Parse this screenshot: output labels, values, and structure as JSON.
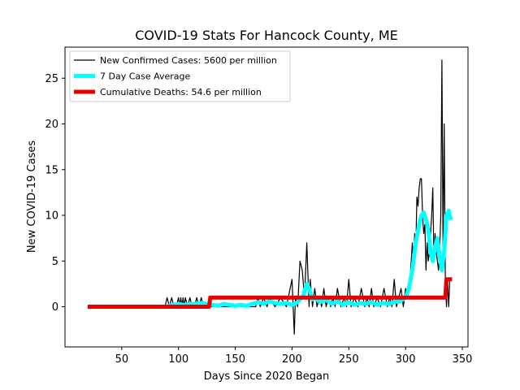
{
  "chart_data": {
    "type": "line",
    "title": "COVID-19 Stats For Hancock County, ME",
    "xlabel": "Days Since 2020 Began",
    "ylabel": "New COVID-19 Cases",
    "xlim": [
      0,
      355
    ],
    "ylim": [
      -4.4,
      28.4
    ],
    "xticks": [
      50,
      100,
      150,
      200,
      250,
      300,
      350
    ],
    "yticks": [
      0,
      5,
      10,
      15,
      20,
      25
    ],
    "grid": false,
    "legend_position": "top-left",
    "series": [
      {
        "name": "New Confirmed Cases: 5600 per million",
        "color": "#000000",
        "x": [
          20,
          88,
          90,
          92,
          94,
          96,
          98,
          100,
          101,
          102,
          103,
          104,
          105,
          106,
          108,
          110,
          112,
          114,
          116,
          118,
          120,
          122,
          130,
          150,
          168,
          170,
          172,
          175,
          178,
          180,
          185,
          190,
          195,
          200,
          202,
          203,
          205,
          207,
          209,
          211,
          213,
          215,
          216,
          218,
          220,
          222,
          224,
          226,
          228,
          230,
          232,
          234,
          236,
          238,
          240,
          243,
          246,
          248,
          250,
          252,
          255,
          258,
          261,
          264,
          266,
          268,
          270,
          272,
          275,
          278,
          281,
          284,
          286,
          288,
          290,
          292,
          294,
          296,
          298,
          300,
          302,
          304,
          306,
          307,
          308,
          309,
          310,
          311,
          312,
          313,
          314,
          315,
          316,
          317,
          318,
          319,
          320,
          321,
          322,
          323,
          324,
          325,
          326,
          327,
          328,
          329,
          330,
          331,
          332,
          333,
          334,
          335,
          336,
          337,
          338,
          339,
          340
        ],
        "values": [
          0,
          0,
          1,
          0,
          1,
          0,
          0,
          1,
          0,
          1,
          0,
          1,
          0,
          1,
          0,
          1,
          0,
          0,
          1,
          0,
          1,
          0,
          0,
          0,
          0,
          1,
          0,
          1,
          0,
          1,
          0,
          1,
          0,
          3,
          -3,
          1,
          0,
          5,
          4,
          1,
          7,
          0,
          3,
          0,
          2,
          0,
          1,
          0,
          2,
          0,
          1,
          0,
          1,
          0,
          2,
          0,
          1,
          0,
          3,
          0,
          1,
          0,
          2,
          0,
          1,
          0,
          2,
          0,
          1,
          0,
          2,
          0,
          1,
          0,
          3,
          0,
          1,
          2,
          0,
          2,
          1,
          3,
          7,
          4,
          8,
          6,
          12,
          11,
          13,
          14,
          14,
          10,
          8,
          9,
          4,
          7,
          5,
          6,
          8,
          10,
          13,
          5,
          8,
          6,
          5,
          4,
          6,
          10,
          27,
          6,
          20,
          3,
          0,
          3,
          0,
          3,
          3
        ]
      },
      {
        "name": "7 Day Case Average",
        "color": "#00ffff",
        "x": [
          88,
          95,
          100,
          105,
          110,
          115,
          120,
          125,
          130,
          135,
          140,
          145,
          150,
          155,
          160,
          165,
          170,
          175,
          180,
          185,
          190,
          195,
          200,
          205,
          210,
          213,
          215,
          218,
          220,
          225,
          230,
          235,
          240,
          245,
          250,
          255,
          260,
          265,
          270,
          275,
          280,
          285,
          290,
          295,
          300,
          303,
          306,
          309,
          312,
          314,
          316,
          318,
          320,
          322,
          324,
          326,
          328,
          330,
          332,
          334,
          336,
          338,
          340
        ],
        "values": [
          0,
          0.2,
          0.3,
          0.2,
          0.3,
          0.3,
          0.4,
          0.3,
          0.2,
          0.1,
          0.3,
          0.2,
          0.1,
          0.2,
          0.1,
          0.3,
          0.5,
          0.3,
          0.6,
          0.4,
          0.3,
          0.4,
          0.2,
          0.5,
          1.2,
          2.5,
          2.0,
          0.8,
          1.0,
          0.5,
          0.8,
          0.3,
          0.6,
          0.2,
          0.5,
          0.2,
          0.4,
          0.3,
          0.5,
          0.2,
          0.4,
          0.3,
          0.5,
          0.6,
          1.0,
          2.0,
          4.0,
          7.0,
          9.0,
          10.0,
          10.3,
          9.5,
          8.5,
          6.0,
          5.0,
          6.5,
          7.5,
          5.5,
          4.0,
          6.0,
          10.0,
          10.5,
          9.5
        ]
      },
      {
        "name": "Cumulative Deaths: 54.6 per million",
        "color": "#e60000",
        "x": [
          20,
          127,
          128,
          335,
          336,
          341
        ],
        "values": [
          0,
          0,
          1,
          1,
          3,
          3
        ]
      }
    ]
  }
}
